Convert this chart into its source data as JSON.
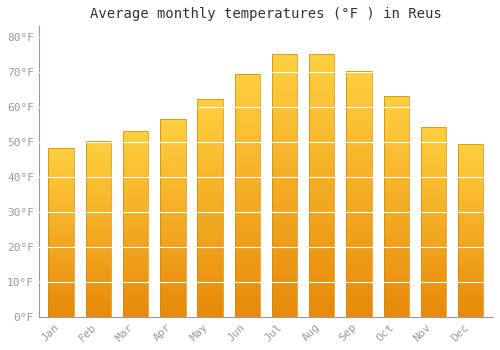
{
  "title": "Average monthly temperatures (°F ) in Reus",
  "months": [
    "Jan",
    "Feb",
    "Mar",
    "Apr",
    "May",
    "Jun",
    "Jul",
    "Aug",
    "Sep",
    "Oct",
    "Nov",
    "Dec"
  ],
  "values": [
    48.2,
    50.2,
    53.2,
    56.5,
    62.2,
    69.3,
    75.0,
    75.0,
    70.3,
    63.0,
    54.3,
    49.5
  ],
  "bar_color": "#FFA500",
  "bar_color_light": "#FFD040",
  "bar_edge_color": "#CC7700",
  "background_color": "#ffffff",
  "grid_color": "#e0e0e0",
  "yticks": [
    0,
    10,
    20,
    30,
    40,
    50,
    60,
    70,
    80
  ],
  "ylim": [
    0,
    83
  ],
  "title_fontsize": 10,
  "tick_fontsize": 8,
  "tick_label_color": "#999999"
}
